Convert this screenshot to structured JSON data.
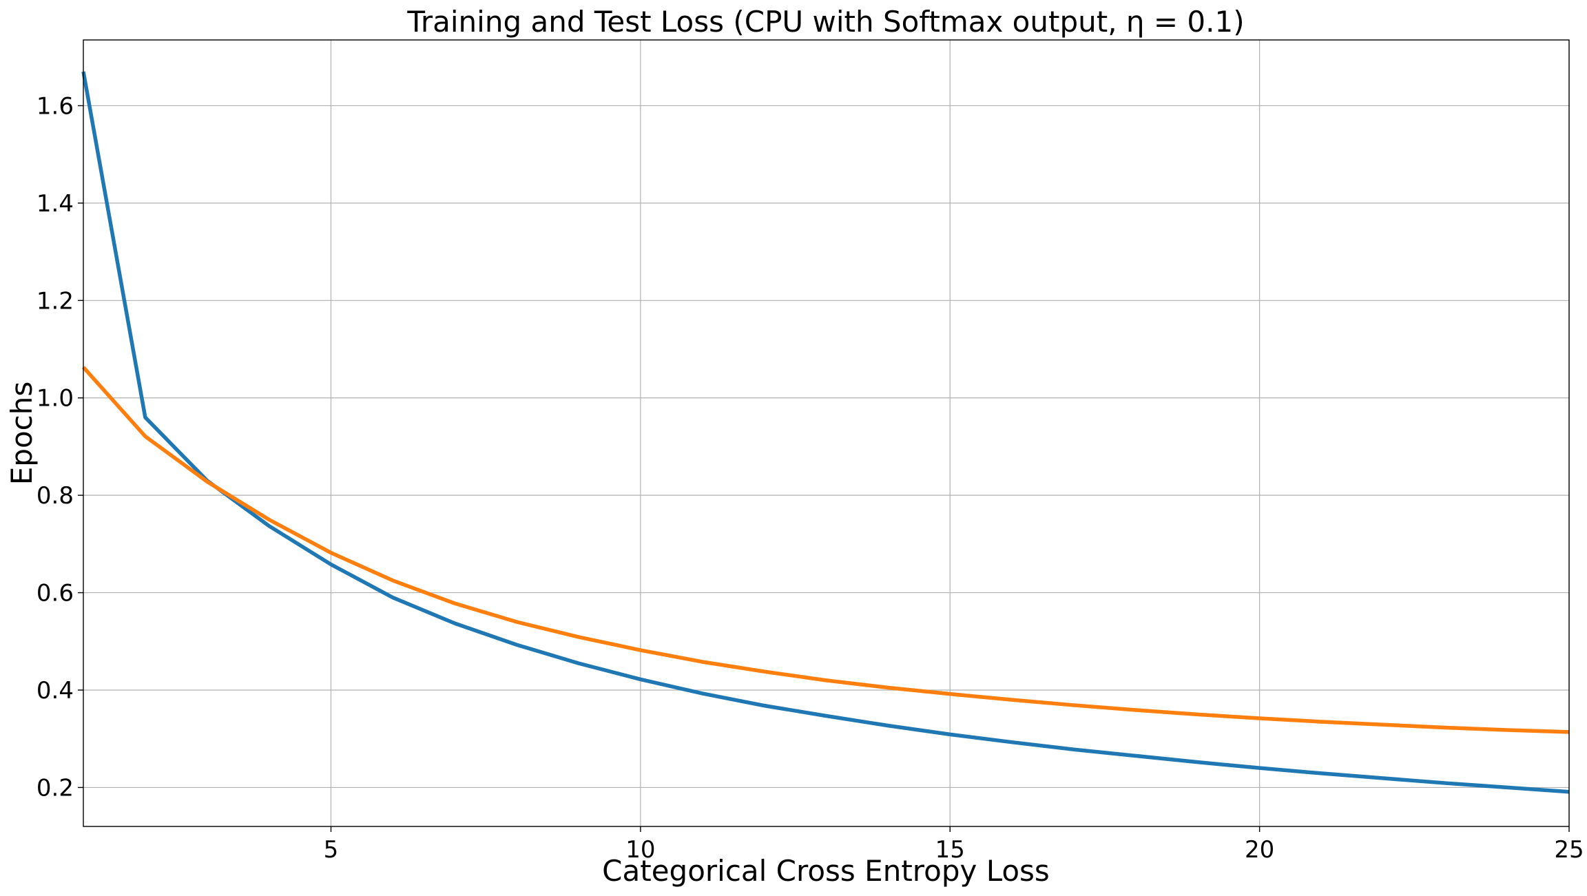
{
  "chart_data": {
    "type": "line",
    "title": "Training and Test Loss (CPU with Softmax output, η = 0.1)",
    "xlabel": "Categorical Cross Entropy Loss",
    "ylabel": "Epochs",
    "xlim": [
      1,
      25
    ],
    "ylim": [
      0.12,
      1.735
    ],
    "xticks": [
      5,
      10,
      15,
      20,
      25
    ],
    "yticks": [
      0.2,
      0.4,
      0.6,
      0.8,
      1.0,
      1.2,
      1.4,
      1.6
    ],
    "xtick_labels": [
      "5",
      "10",
      "15",
      "20",
      "25"
    ],
    "ytick_labels": [
      "0.2",
      "0.4",
      "0.6",
      "0.8",
      "1.0",
      "1.2",
      "1.4",
      "1.6"
    ],
    "grid": true,
    "x": [
      1,
      2,
      3,
      4,
      5,
      6,
      7,
      8,
      9,
      10,
      11,
      12,
      13,
      14,
      15,
      16,
      17,
      18,
      19,
      20,
      21,
      22,
      23,
      24,
      25
    ],
    "series": [
      {
        "color": "#1f77b4",
        "values": [
          1.67,
          0.96,
          0.83,
          0.737,
          0.658,
          0.59,
          0.537,
          0.493,
          0.455,
          0.422,
          0.393,
          0.368,
          0.347,
          0.327,
          0.309,
          0.293,
          0.278,
          0.265,
          0.252,
          0.24,
          0.229,
          0.219,
          0.209,
          0.2,
          0.191
        ]
      },
      {
        "color": "#ff7f0e",
        "values": [
          1.063,
          0.921,
          0.828,
          0.75,
          0.682,
          0.625,
          0.578,
          0.54,
          0.509,
          0.482,
          0.458,
          0.438,
          0.42,
          0.405,
          0.392,
          0.38,
          0.369,
          0.359,
          0.35,
          0.342,
          0.335,
          0.329,
          0.323,
          0.318,
          0.314
        ]
      }
    ]
  }
}
